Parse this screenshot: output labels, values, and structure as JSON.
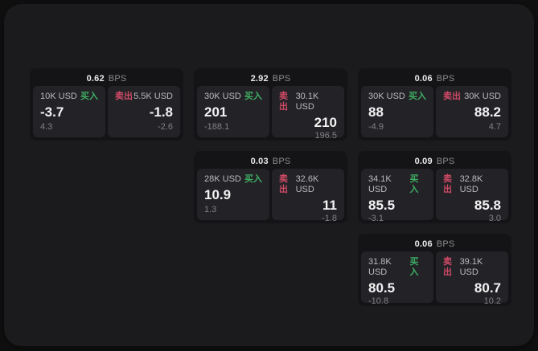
{
  "labels": {
    "bps": "BPS",
    "buy": "买入",
    "sell": "卖出"
  },
  "colors": {
    "buy": "#3fae63",
    "sell": "#d04a66",
    "outer_bg": "#101010",
    "window_bg": "#1b1b1d",
    "card_bg": "#141416",
    "pane_bg": "#232327"
  },
  "cards": [
    {
      "col": 1,
      "row": 1,
      "bps": "0.62",
      "buy": {
        "amount": "10K USD",
        "price": "-3.7",
        "delta": "4.3"
      },
      "sell": {
        "amount": "5.5K USD",
        "price": "-1.8",
        "delta": "-2.6"
      }
    },
    {
      "col": 2,
      "row": 1,
      "bps": "2.92",
      "buy": {
        "amount": "30K USD",
        "price": "201",
        "delta": "-188.1"
      },
      "sell": {
        "amount": "30.1K USD",
        "price": "210",
        "delta": "196.5"
      }
    },
    {
      "col": 3,
      "row": 1,
      "bps": "0.06",
      "buy": {
        "amount": "30K USD",
        "price": "88",
        "delta": "-4.9"
      },
      "sell": {
        "amount": "30K USD",
        "price": "88.2",
        "delta": "4.7"
      }
    },
    {
      "col": 2,
      "row": 2,
      "bps": "0.03",
      "buy": {
        "amount": "28K USD",
        "price": "10.9",
        "delta": "1.3"
      },
      "sell": {
        "amount": "32.6K USD",
        "price": "11",
        "delta": "-1.8"
      }
    },
    {
      "col": 3,
      "row": 2,
      "bps": "0.09",
      "buy": {
        "amount": "34.1K USD",
        "price": "85.5",
        "delta": "-3.1"
      },
      "sell": {
        "amount": "32.8K USD",
        "price": "85.8",
        "delta": "3.0"
      }
    },
    {
      "col": 3,
      "row": 3,
      "bps": "0.06",
      "buy": {
        "amount": "31.8K USD",
        "price": "80.5",
        "delta": "-10.8"
      },
      "sell": {
        "amount": "39.1K USD",
        "price": "80.7",
        "delta": "10.2"
      }
    }
  ]
}
